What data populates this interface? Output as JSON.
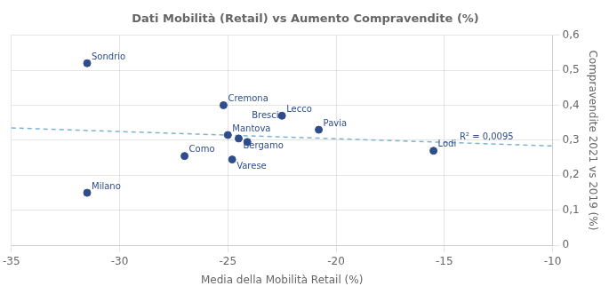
{
  "chart_data": {
    "type": "scatter",
    "title": "Dati Mobilità (Retail) vs Aumento Compravendite (%)",
    "x_label": "Media della Mobilità Retail (%)",
    "y_label": "Compravendite 2021 vs 2019 (%)",
    "series": [
      {
        "type": "scatter",
        "color": "#2e4d8a",
        "marker": "circle",
        "labels": [
          "Sondrio",
          "Milano",
          "Como",
          "Cremona",
          "Mantova",
          "Bergamo",
          "Varese",
          "Brescia",
          "Lecco",
          "Pavia",
          "Lodi"
        ],
        "x": [
          -31.5,
          -31.5,
          -27.0,
          -25.2,
          -25.0,
          -24.5,
          -24.8,
          -24.1,
          -22.5,
          -20.8,
          -15.5
        ],
        "values": [
          0.52,
          0.15,
          0.255,
          0.4,
          0.315,
          0.305,
          0.245,
          0.295,
          0.37,
          0.33,
          0.27
        ]
      },
      {
        "type": "line",
        "color": "#7fb2d0",
        "line_style": "dashed",
        "x": [
          -35,
          -10
        ],
        "values": [
          0.3352,
          0.2837
        ]
      }
    ],
    "annotations": [
      {
        "text": "R² = 0,0095",
        "x": -11.8,
        "y": 0.308
      }
    ],
    "xlim": [
      -35,
      -10
    ],
    "ylim": [
      0,
      0.6
    ],
    "xticks": [
      -35,
      -30,
      -25,
      -20,
      -15,
      -10
    ],
    "yticks": [
      0,
      {
        "value": 0.1,
        "label": "0,1"
      },
      {
        "value": 0.2,
        "label": "0,2"
      },
      {
        "value": 0.3,
        "label": "0,3"
      },
      {
        "value": 0.4,
        "label": "0,4"
      },
      {
        "value": 0.5,
        "label": "0,5"
      },
      {
        "value": 0.6,
        "label": "0,6"
      }
    ],
    "grid": true
  }
}
